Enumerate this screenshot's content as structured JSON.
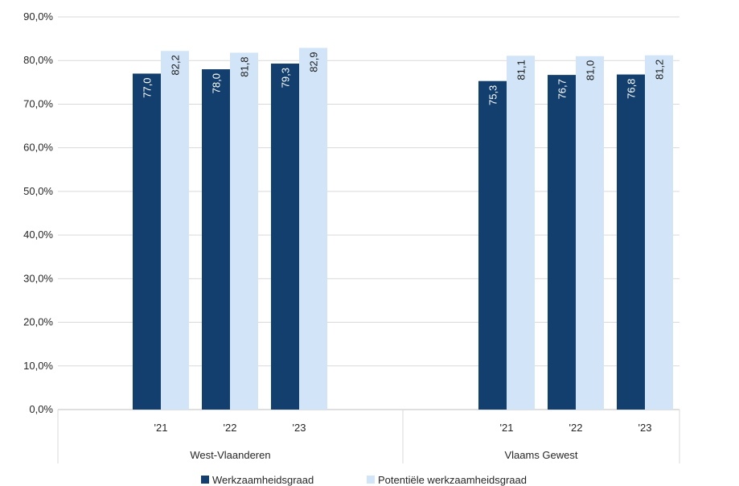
{
  "chart_data": {
    "type": "bar",
    "title": "",
    "xlabel": "",
    "ylabel": "",
    "ylim": [
      0,
      90
    ],
    "ytick_step": 10,
    "ytick_labels": [
      "0,0%",
      "10,0%",
      "20,0%",
      "30,0%",
      "40,0%",
      "50,0%",
      "60,0%",
      "70,0%",
      "80,0%",
      "90,0%"
    ],
    "grid": true,
    "legend_position": "bottom",
    "groups": [
      {
        "name": "West-Vlaanderen",
        "categories": [
          "'21",
          "'22",
          "'23"
        ],
        "series": [
          {
            "name": "Werkzaamheidsgraad",
            "values": [
              77.0,
              78.0,
              79.3
            ],
            "labels": [
              "77,0",
              "78,0",
              "79,3"
            ]
          },
          {
            "name": "Potentiële werkzaamheidsgraad",
            "values": [
              82.2,
              81.8,
              82.9
            ],
            "labels": [
              "82,2",
              "81,8",
              "82,9"
            ]
          }
        ]
      },
      {
        "name": "Vlaams Gewest",
        "categories": [
          "'21",
          "'22",
          "'23"
        ],
        "series": [
          {
            "name": "Werkzaamheidsgraad",
            "values": [
              75.3,
              76.7,
              76.8
            ],
            "labels": [
              "75,3",
              "76,7",
              "76,8"
            ]
          },
          {
            "name": "Potentiële werkzaamheidsgraad",
            "values": [
              81.1,
              81.0,
              81.2
            ],
            "labels": [
              "81,1",
              "81,0",
              "81,2"
            ]
          }
        ]
      }
    ],
    "legend": [
      "Werkzaamheidsgraad",
      "Potentiële werkzaamheidsgraad"
    ],
    "colors": [
      "#123f6d",
      "#d2e5f8"
    ]
  }
}
